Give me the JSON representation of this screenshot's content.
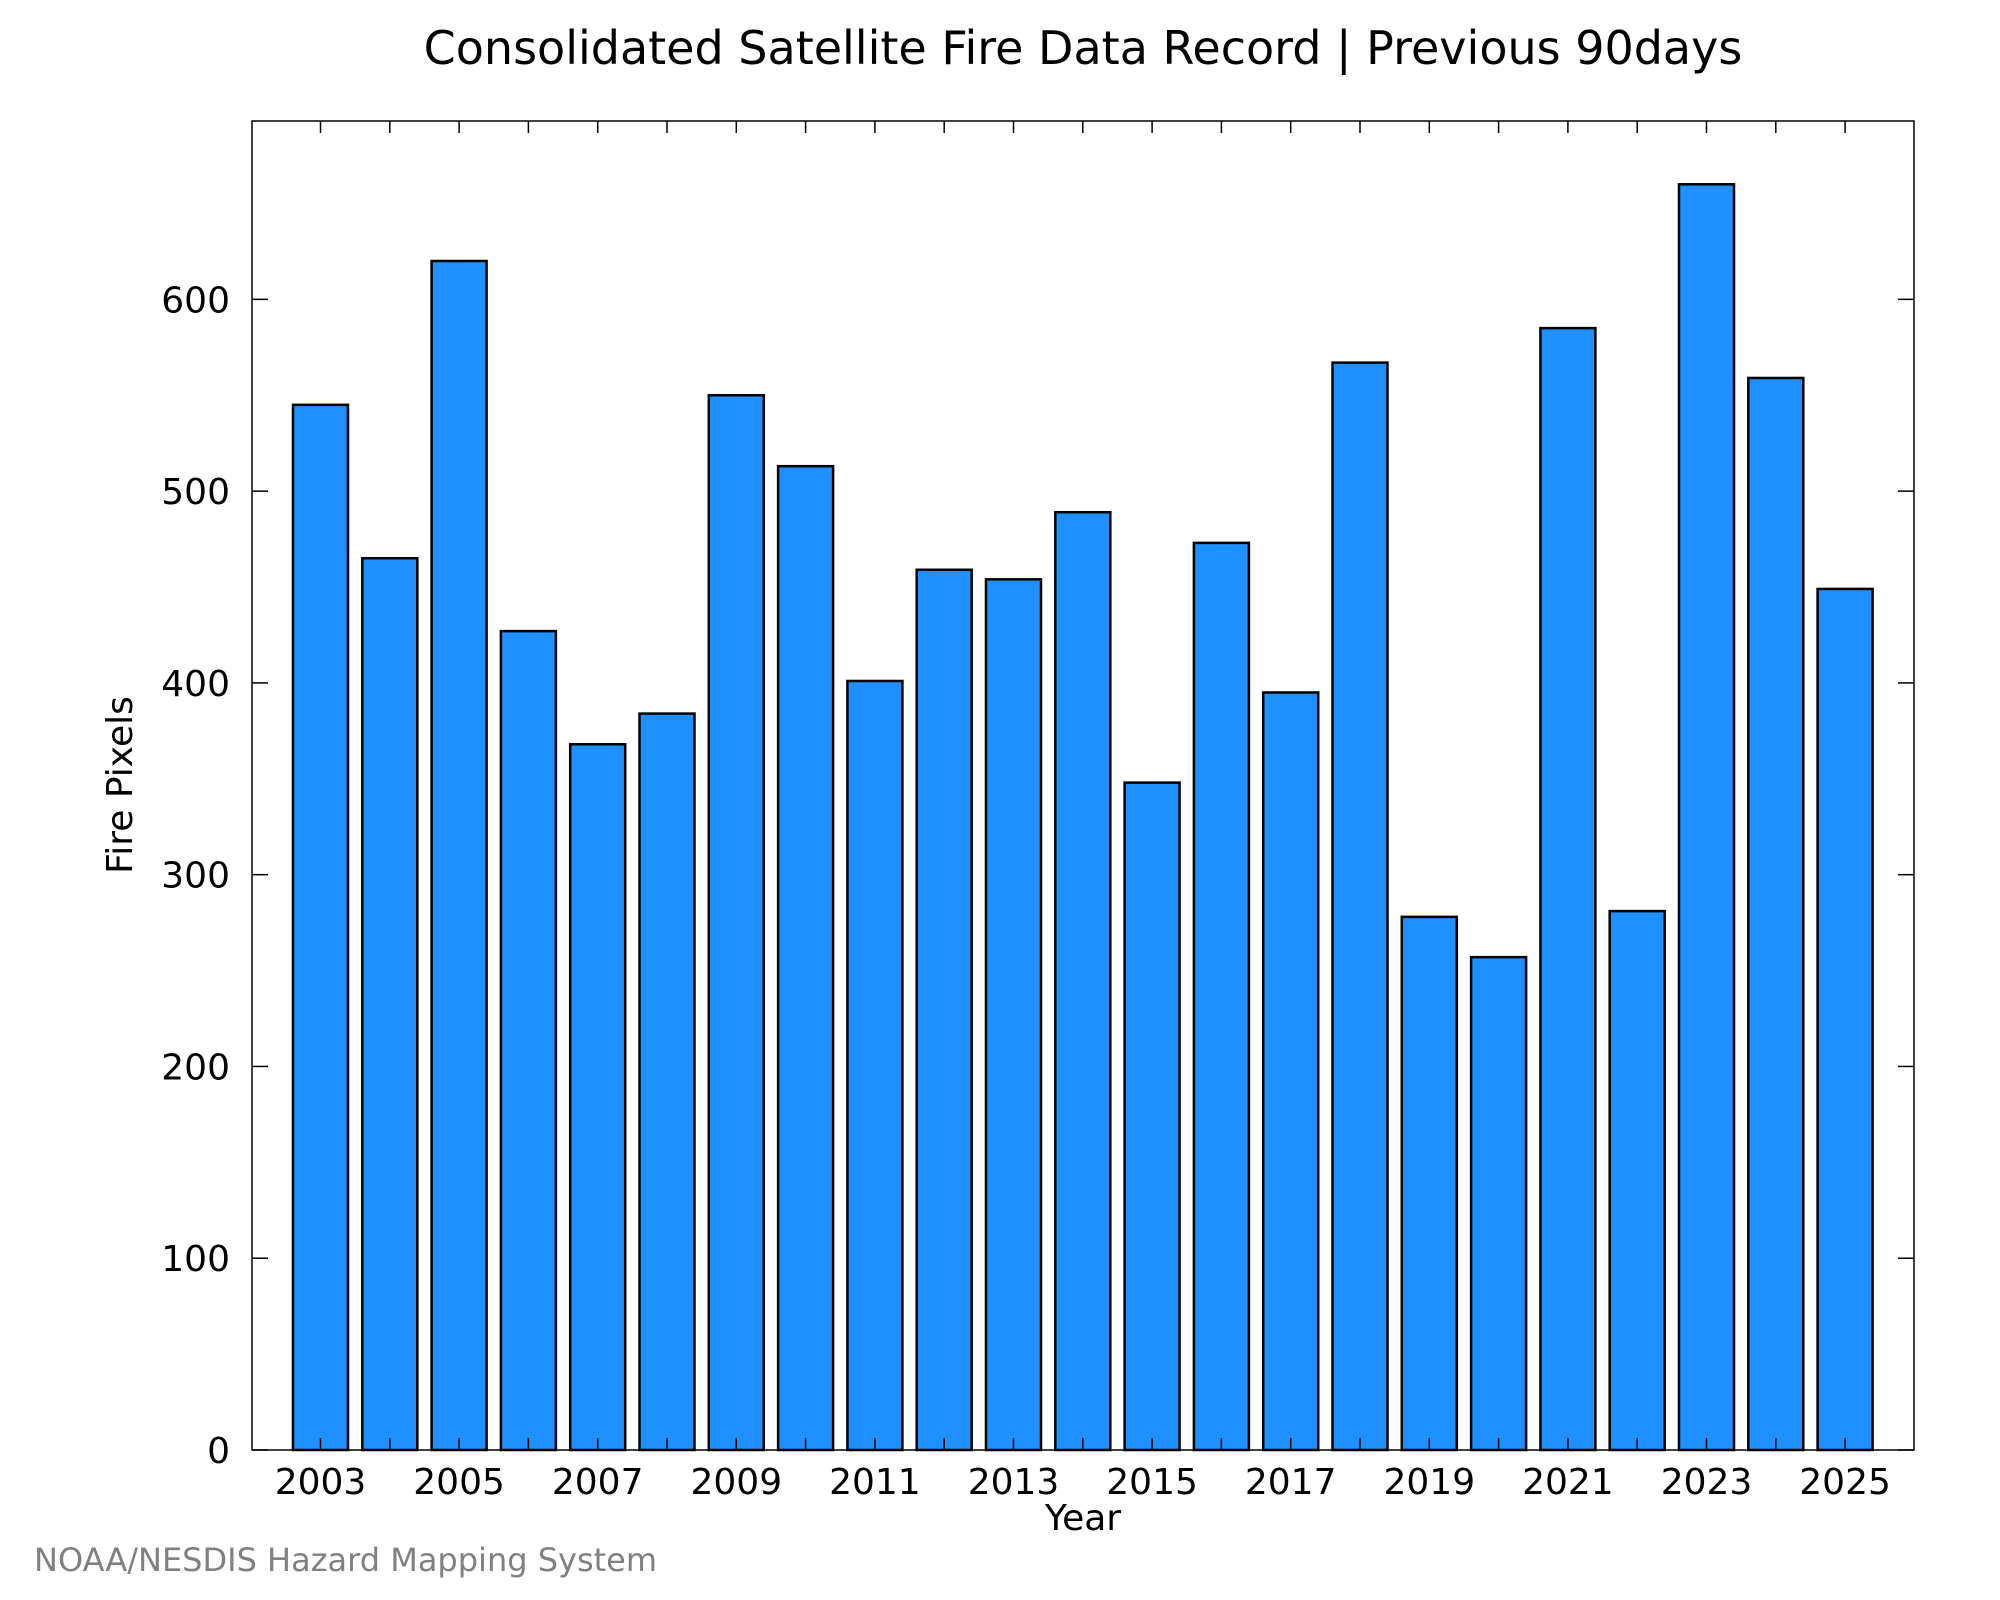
{
  "chart_data": {
    "type": "bar",
    "title": "Consolidated Satellite Fire Data Record | Previous 90days",
    "xlabel": "Year",
    "ylabel": "Fire Pixels",
    "categories": [
      "2003",
      "2004",
      "2005",
      "2006",
      "2007",
      "2008",
      "2009",
      "2010",
      "2011",
      "2012",
      "2013",
      "2014",
      "2015",
      "2016",
      "2017",
      "2018",
      "2019",
      "2020",
      "2021",
      "2022",
      "2023",
      "2024",
      "2025"
    ],
    "values": [
      545,
      465,
      620,
      427,
      368,
      384,
      550,
      513,
      401,
      459,
      454,
      489,
      348,
      473,
      395,
      567,
      278,
      257,
      585,
      281,
      660,
      559,
      449
    ],
    "xtick_labels": [
      "2003",
      "2005",
      "2007",
      "2009",
      "2011",
      "2013",
      "2015",
      "2017",
      "2019",
      "2021",
      "2023",
      "2025"
    ],
    "yticks": [
      0,
      100,
      200,
      300,
      400,
      500,
      600
    ],
    "ylim": [
      0,
      693
    ],
    "grid": false,
    "bar_color": "#1e90ff",
    "edge_color": "#000000"
  },
  "credit": "NOAA/NESDIS Hazard Mapping System"
}
